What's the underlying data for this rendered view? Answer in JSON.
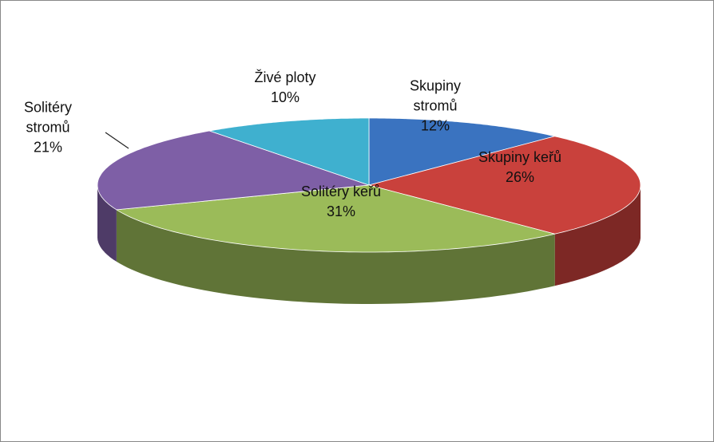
{
  "chart_data": {
    "type": "pie",
    "categories": [
      "Skupiny stromů",
      "Skupiny keřů",
      "Solitéry keřů",
      "Solitéry stromů",
      "Živé ploty"
    ],
    "values": [
      12,
      26,
      31,
      21,
      10
    ],
    "value_labels": [
      "12%",
      "26%",
      "31%",
      "21%",
      "10%"
    ],
    "colors": [
      "#3a73c0",
      "#c9413c",
      "#9bbb59",
      "#7e5fa6",
      "#3fb0cf"
    ]
  }
}
